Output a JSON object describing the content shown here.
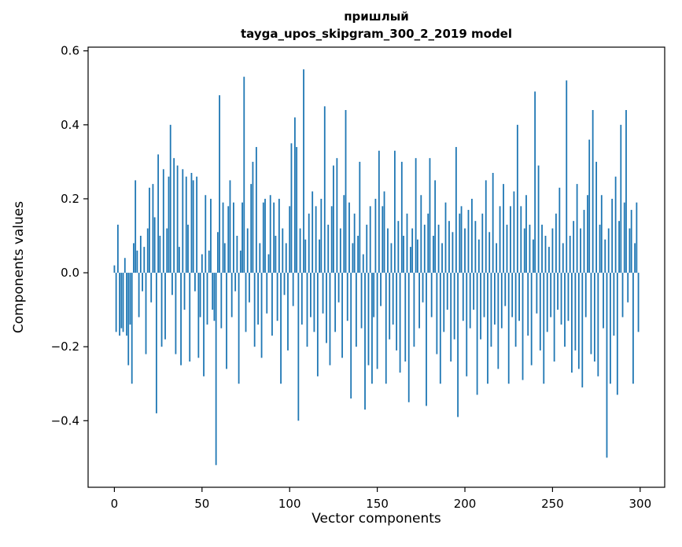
{
  "title": "пришлый",
  "subtitle": "tayga_upos_skipgram_300_2_2019 model",
  "chart_data": {
    "type": "bar",
    "title": "пришлый",
    "subtitle": "tayga_upos_skipgram_300_2_2019 model",
    "xlabel": "Vector components",
    "ylabel": "Components values",
    "xlim": [
      -15,
      314
    ],
    "ylim": [
      -0.58,
      0.61
    ],
    "xticks": [
      0,
      50,
      100,
      150,
      200,
      250,
      300
    ],
    "yticks": [
      -0.4,
      -0.2,
      0.0,
      0.2,
      0.4,
      0.6
    ],
    "bar_color": "#1f77b4",
    "grid": false,
    "legend": "none",
    "values": [
      0.02,
      -0.16,
      0.13,
      -0.17,
      -0.15,
      -0.16,
      0.04,
      -0.17,
      -0.25,
      -0.14,
      -0.3,
      0.08,
      0.25,
      0.06,
      -0.12,
      0.1,
      -0.05,
      0.07,
      -0.22,
      0.12,
      0.23,
      -0.08,
      0.24,
      0.15,
      -0.38,
      0.32,
      0.1,
      -0.2,
      0.28,
      -0.18,
      0.12,
      0.26,
      0.4,
      -0.06,
      0.31,
      -0.22,
      0.29,
      0.07,
      -0.25,
      0.28,
      -0.1,
      0.26,
      0.13,
      -0.24,
      0.27,
      0.25,
      -0.05,
      0.26,
      -0.23,
      -0.12,
      0.05,
      -0.28,
      0.21,
      -0.14,
      0.06,
      0.2,
      -0.1,
      -0.13,
      -0.52,
      0.11,
      0.48,
      -0.15,
      0.19,
      0.08,
      -0.26,
      0.18,
      0.25,
      -0.12,
      0.19,
      -0.05,
      0.1,
      -0.3,
      0.06,
      0.19,
      0.53,
      -0.16,
      0.12,
      -0.08,
      0.24,
      0.3,
      -0.2,
      0.34,
      -0.14,
      0.08,
      -0.23,
      0.19,
      0.2,
      -0.11,
      0.05,
      0.21,
      -0.17,
      0.19,
      0.1,
      -0.13,
      0.2,
      -0.3,
      0.12,
      -0.06,
      0.08,
      -0.21,
      0.18,
      0.35,
      -0.09,
      0.42,
      0.34,
      -0.4,
      0.12,
      -0.14,
      0.55,
      0.09,
      -0.2,
      0.16,
      -0.12,
      0.22,
      -0.16,
      0.18,
      -0.28,
      0.09,
      0.2,
      -0.11,
      0.45,
      -0.19,
      0.13,
      -0.25,
      0.18,
      0.29,
      -0.16,
      0.31,
      -0.08,
      0.12,
      -0.23,
      0.21,
      0.44,
      -0.13,
      0.19,
      -0.34,
      0.08,
      0.16,
      -0.2,
      0.1,
      0.3,
      -0.15,
      0.05,
      -0.37,
      0.13,
      -0.25,
      0.18,
      -0.3,
      -0.12,
      0.2,
      -0.26,
      0.33,
      -0.09,
      0.18,
      0.22,
      -0.3,
      0.12,
      -0.18,
      0.08,
      -0.14,
      0.33,
      -0.21,
      0.14,
      -0.27,
      0.3,
      0.1,
      -0.24,
      0.16,
      -0.35,
      0.07,
      0.12,
      -0.2,
      0.31,
      0.09,
      -0.15,
      0.21,
      -0.08,
      0.13,
      -0.36,
      0.16,
      0.31,
      -0.12,
      0.1,
      0.25,
      -0.22,
      0.13,
      -0.3,
      0.08,
      -0.16,
      0.19,
      -0.1,
      0.14,
      -0.24,
      0.11,
      -0.18,
      0.34,
      -0.39,
      0.16,
      0.18,
      -0.13,
      0.12,
      -0.28,
      0.17,
      -0.15,
      0.2,
      -0.1,
      0.14,
      -0.33,
      0.09,
      -0.18,
      0.16,
      -0.12,
      0.25,
      -0.3,
      0.11,
      -0.2,
      0.27,
      -0.14,
      0.08,
      -0.26,
      0.18,
      -0.15,
      0.24,
      -0.09,
      0.13,
      -0.3,
      0.18,
      -0.12,
      0.22,
      -0.2,
      0.4,
      -0.13,
      0.18,
      -0.29,
      0.12,
      0.21,
      -0.17,
      0.13,
      -0.25,
      0.09,
      0.49,
      -0.11,
      0.29,
      -0.21,
      0.13,
      -0.3,
      0.1,
      -0.16,
      0.07,
      -0.12,
      0.12,
      -0.24,
      0.16,
      -0.1,
      0.23,
      -0.14,
      0.08,
      -0.2,
      0.52,
      -0.13,
      0.1,
      -0.27,
      0.14,
      -0.21,
      0.24,
      -0.26,
      0.12,
      -0.31,
      0.17,
      -0.12,
      0.21,
      0.36,
      -0.22,
      0.44,
      -0.24,
      0.3,
      -0.28,
      0.13,
      0.21,
      -0.15,
      0.09,
      -0.5,
      0.12,
      -0.3,
      0.2,
      -0.17,
      0.26,
      -0.33,
      0.14,
      0.4,
      -0.12,
      0.19,
      0.44,
      -0.08,
      0.12,
      0.17,
      -0.3,
      0.08,
      0.19,
      -0.16
    ]
  }
}
